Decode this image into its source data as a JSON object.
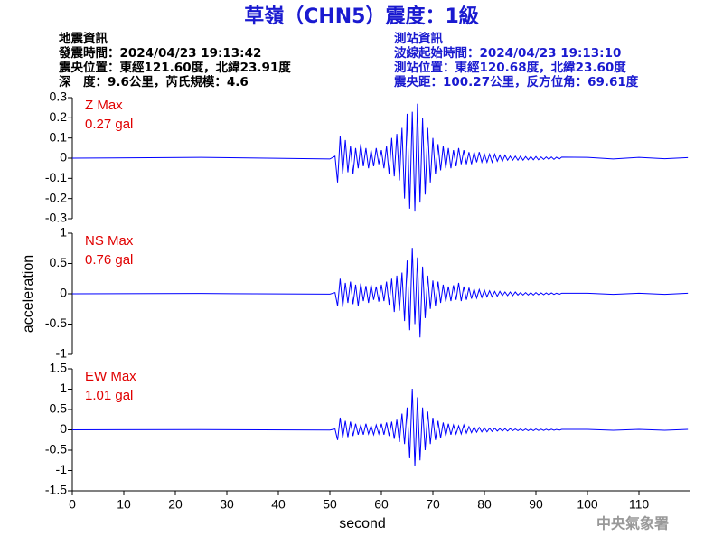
{
  "header": {
    "title": "草嶺（CHN5）震度：1級",
    "left": [
      "地震資訊",
      "發震時間：2024/04/23 19:13:42",
      "震央位置：東經121.60度，北緯23.91度",
      "深　度：9.6公里，芮氏規模：4.6"
    ],
    "right": [
      "測站資訊",
      "波線起始時間：2024/04/23 19:13:10",
      "測站位置：東經120.68度，北緯23.60度",
      "震央距：100.27公里，反方位角：69.61度"
    ]
  },
  "footer": "中央氣象署",
  "chart_data": [
    {
      "type": "line",
      "label": "Z Max",
      "annotation": "0.27 gal",
      "color": "#0000ff",
      "xlim": [
        0,
        120
      ],
      "ylim": [
        -0.3,
        0.3
      ],
      "yticks": [
        -0.3,
        -0.2,
        -0.1,
        0,
        0.1,
        0.2,
        0.3
      ],
      "x": [
        0,
        25,
        50,
        51,
        51.5,
        52,
        52.5,
        53,
        53.5,
        54,
        54.5,
        55,
        55.5,
        56,
        56.5,
        57,
        57.5,
        58,
        58.5,
        59,
        59.5,
        60,
        60.5,
        61,
        61.5,
        62,
        62.5,
        63,
        63.5,
        64,
        64.5,
        65,
        65.5,
        66,
        66.5,
        67,
        67.5,
        68,
        68.5,
        69,
        69.5,
        70,
        70.5,
        71,
        71.5,
        72,
        72.5,
        73,
        73.5,
        74,
        74.5,
        75,
        75.5,
        76,
        76.5,
        77,
        77.5,
        78,
        78.5,
        79,
        79.5,
        80,
        80.5,
        81,
        81.5,
        82,
        82.5,
        83,
        83.5,
        84,
        84.5,
        85,
        85.5,
        86,
        86.5,
        87,
        87.5,
        88,
        88.5,
        89,
        89.5,
        90,
        90.5,
        91,
        91.5,
        92,
        92.5,
        93,
        93.5,
        94,
        94.5,
        95,
        100,
        105,
        110,
        115,
        119.5
      ],
      "values": [
        0,
        0.004,
        -0.004,
        0.01,
        -0.12,
        0.11,
        -0.08,
        0.09,
        -0.07,
        0.06,
        -0.08,
        0.05,
        -0.05,
        0.07,
        -0.04,
        0.05,
        -0.05,
        0.04,
        -0.04,
        0.05,
        -0.03,
        0.04,
        -0.05,
        0.06,
        -0.08,
        0.1,
        -0.09,
        0.12,
        -0.11,
        0.15,
        -0.2,
        0.22,
        -0.25,
        0.23,
        -0.26,
        0.27,
        -0.22,
        0.2,
        -0.18,
        0.15,
        -0.12,
        0.1,
        -0.08,
        0.07,
        -0.06,
        0.06,
        -0.05,
        0.05,
        -0.05,
        0.04,
        -0.04,
        0.05,
        -0.03,
        0.04,
        -0.03,
        0.03,
        -0.03,
        0.03,
        -0.02,
        0.03,
        -0.02,
        0.02,
        -0.02,
        0.02,
        -0.02,
        0.02,
        -0.015,
        0.015,
        -0.015,
        0.015,
        -0.01,
        0.01,
        -0.01,
        0.01,
        -0.01,
        0.01,
        -0.01,
        0.008,
        -0.008,
        0.008,
        -0.008,
        0.008,
        -0.008,
        0.006,
        -0.006,
        0.006,
        -0.006,
        0.006,
        -0.006,
        0.005,
        -0.005,
        0.005,
        0.004,
        -0.004,
        0.004,
        -0.003,
        0.003
      ]
    },
    {
      "type": "line",
      "label": "NS Max",
      "annotation": "0.76 gal",
      "color": "#0000ff",
      "ylabel": "acceleration",
      "xlim": [
        0,
        120
      ],
      "ylim": [
        -1,
        1
      ],
      "yticks": [
        -1,
        -0.5,
        0,
        0.5,
        1
      ],
      "x": [
        0,
        25,
        50,
        51,
        51.5,
        52,
        52.5,
        53,
        53.5,
        54,
        54.5,
        55,
        55.5,
        56,
        56.5,
        57,
        57.5,
        58,
        58.5,
        59,
        59.5,
        60,
        60.5,
        61,
        61.5,
        62,
        62.5,
        63,
        63.5,
        64,
        64.5,
        65,
        65.5,
        66,
        66.5,
        67,
        67.5,
        68,
        68.5,
        69,
        69.5,
        70,
        70.5,
        71,
        71.5,
        72,
        72.5,
        73,
        73.5,
        74,
        74.5,
        75,
        75.5,
        76,
        76.5,
        77,
        77.5,
        78,
        78.5,
        79,
        79.5,
        80,
        80.5,
        81,
        81.5,
        82,
        82.5,
        83,
        83.5,
        84,
        84.5,
        85,
        85.5,
        86,
        86.5,
        87,
        87.5,
        88,
        88.5,
        89,
        89.5,
        90,
        90.5,
        91,
        91.5,
        92,
        92.5,
        93,
        93.5,
        94,
        94.5,
        95,
        100,
        105,
        110,
        115,
        119.5
      ],
      "values": [
        0,
        0.005,
        -0.005,
        0.02,
        -0.2,
        0.25,
        -0.22,
        0.18,
        -0.15,
        0.2,
        -0.17,
        0.15,
        -0.2,
        0.17,
        -0.12,
        0.13,
        -0.15,
        0.15,
        -0.1,
        0.12,
        -0.13,
        0.15,
        -0.12,
        0.2,
        -0.18,
        0.25,
        -0.3,
        0.3,
        -0.28,
        0.35,
        -0.45,
        0.55,
        -0.6,
        0.76,
        -0.5,
        0.6,
        -0.72,
        0.45,
        -0.4,
        0.3,
        -0.25,
        0.22,
        -0.2,
        0.2,
        -0.15,
        0.15,
        -0.13,
        0.12,
        -0.12,
        0.14,
        -0.1,
        0.18,
        -0.12,
        0.12,
        -0.1,
        0.1,
        -0.08,
        0.08,
        -0.07,
        0.07,
        -0.06,
        0.06,
        -0.05,
        0.05,
        -0.05,
        0.04,
        -0.04,
        0.04,
        -0.03,
        0.03,
        -0.03,
        0.03,
        -0.03,
        0.03,
        -0.02,
        0.02,
        -0.02,
        0.02,
        -0.02,
        0.02,
        -0.02,
        0.02,
        -0.015,
        0.015,
        -0.015,
        0.015,
        -0.015,
        0.015,
        -0.01,
        0.01,
        -0.01,
        0.01,
        0.01,
        -0.01,
        0.01,
        -0.01,
        0.01
      ]
    },
    {
      "type": "line",
      "label": "EW Max",
      "annotation": "1.01 gal",
      "color": "#0000ff",
      "xlabel": "second",
      "xlim": [
        0,
        120
      ],
      "xticks": [
        0,
        10,
        20,
        30,
        40,
        50,
        60,
        70,
        80,
        90,
        100,
        110
      ],
      "ylim": [
        -1.5,
        1.5
      ],
      "yticks": [
        -1.5,
        -1,
        -0.5,
        0,
        0.5,
        1,
        1.5
      ],
      "x": [
        0,
        25,
        50,
        51,
        51.5,
        52,
        52.5,
        53,
        53.5,
        54,
        54.5,
        55,
        55.5,
        56,
        56.5,
        57,
        57.5,
        58,
        58.5,
        59,
        59.5,
        60,
        60.5,
        61,
        61.5,
        62,
        62.5,
        63,
        63.5,
        64,
        64.5,
        65,
        65.5,
        66,
        66.5,
        67,
        67.5,
        68,
        68.5,
        69,
        69.5,
        70,
        70.5,
        71,
        71.5,
        72,
        72.5,
        73,
        73.5,
        74,
        74.5,
        75,
        75.5,
        76,
        76.5,
        77,
        77.5,
        78,
        78.5,
        79,
        79.5,
        80,
        80.5,
        81,
        81.5,
        82,
        82.5,
        83,
        83.5,
        84,
        84.5,
        85,
        85.5,
        86,
        86.5,
        87,
        87.5,
        88,
        88.5,
        89,
        89.5,
        90,
        90.5,
        91,
        91.5,
        92,
        92.5,
        93,
        93.5,
        94,
        94.5,
        95,
        100,
        105,
        110,
        115,
        119.5
      ],
      "values": [
        0,
        0.005,
        -0.005,
        0.02,
        -0.25,
        0.3,
        -0.2,
        0.22,
        -0.18,
        0.2,
        -0.15,
        0.15,
        -0.12,
        0.12,
        -0.12,
        0.15,
        -0.1,
        0.1,
        -0.12,
        0.12,
        -0.1,
        0.15,
        -0.12,
        0.18,
        -0.15,
        0.2,
        -0.22,
        0.25,
        -0.3,
        0.4,
        -0.35,
        0.55,
        -0.7,
        1.01,
        -0.9,
        0.8,
        -0.75,
        0.55,
        -0.5,
        0.45,
        -0.35,
        0.3,
        -0.25,
        0.22,
        -0.2,
        0.18,
        -0.15,
        0.15,
        -0.12,
        0.12,
        -0.1,
        0.1,
        -0.1,
        0.12,
        -0.08,
        0.08,
        -0.07,
        0.07,
        -0.06,
        0.06,
        -0.05,
        0.05,
        -0.05,
        0.04,
        -0.04,
        0.04,
        -0.03,
        0.03,
        -0.03,
        0.03,
        -0.03,
        0.03,
        -0.02,
        0.02,
        -0.02,
        0.02,
        -0.02,
        0.02,
        -0.02,
        0.02,
        -0.02,
        0.02,
        -0.015,
        0.015,
        -0.015,
        0.015,
        -0.015,
        0.015,
        -0.01,
        0.01,
        -0.01,
        0.01,
        0.01,
        -0.01,
        0.01,
        -0.01,
        0.01
      ]
    }
  ]
}
